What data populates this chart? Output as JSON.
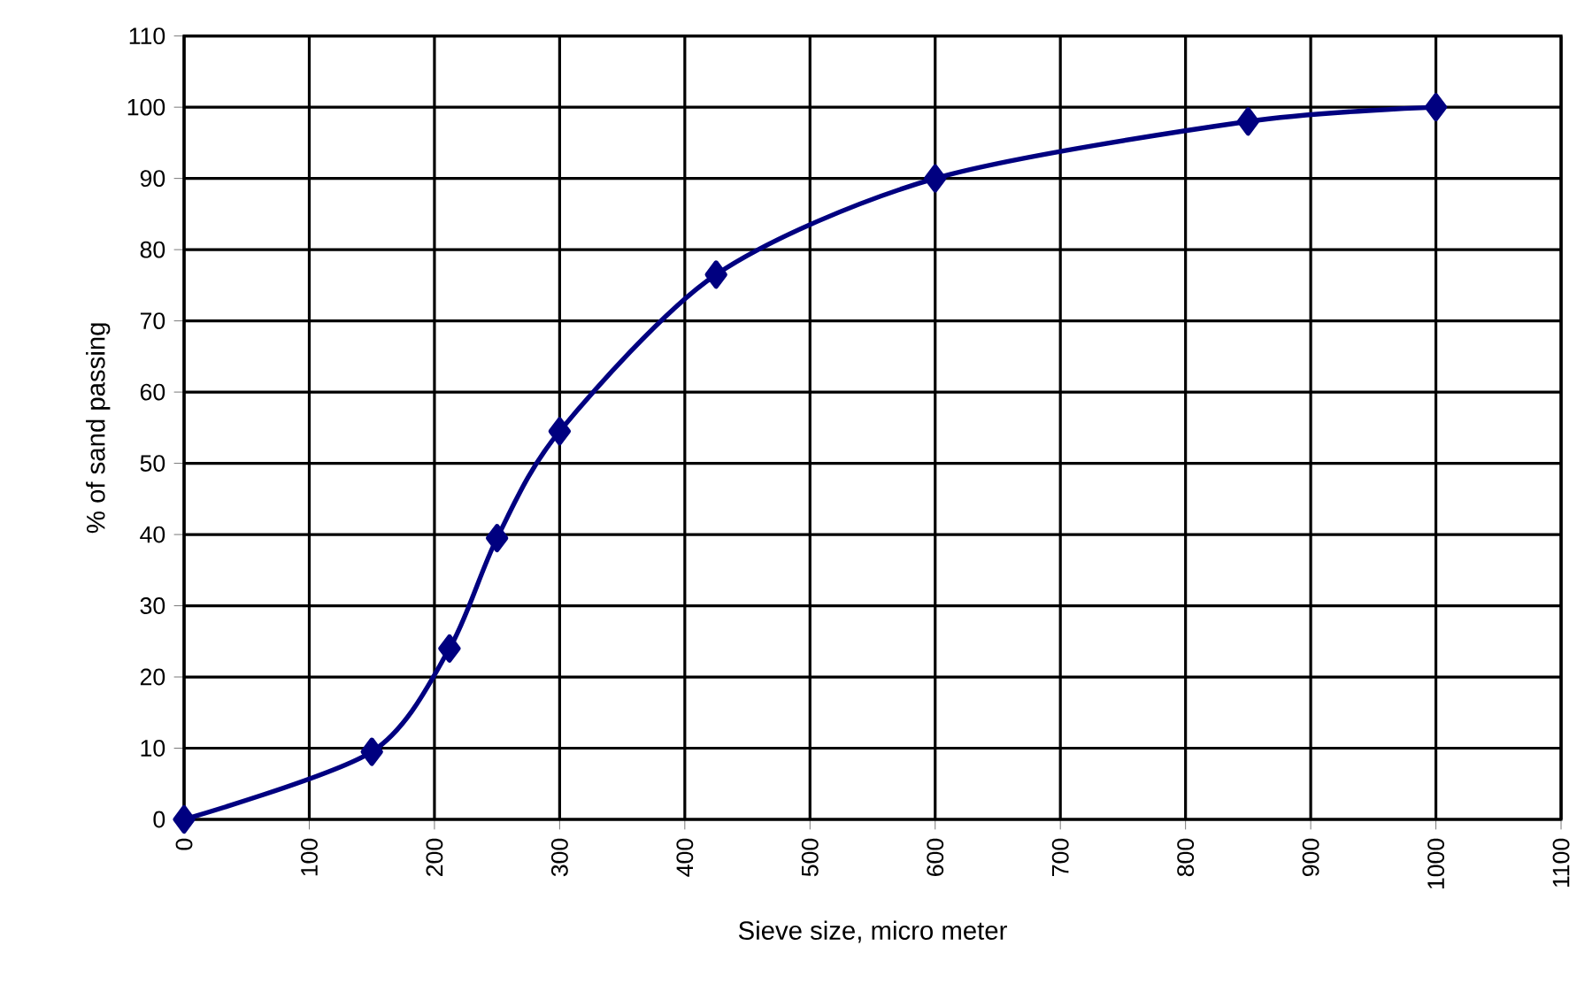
{
  "chart_data": {
    "type": "line",
    "xlabel": "Sieve size, micro meter",
    "ylabel": "% of sand passing",
    "x": [
      0,
      150,
      212,
      250,
      300,
      425,
      600,
      850,
      1000
    ],
    "series": [
      {
        "color": "#000080",
        "values": [
          0,
          9.5,
          24,
          39.5,
          54.5,
          76.5,
          90,
          98,
          100
        ]
      }
    ],
    "xlim": [
      0,
      1100
    ],
    "xticks": [
      0,
      100,
      200,
      300,
      400,
      500,
      600,
      700,
      800,
      900,
      1000,
      1100
    ],
    "ylim": [
      0,
      110
    ],
    "yticks": [
      0,
      10,
      20,
      30,
      40,
      50,
      60,
      70,
      80,
      90,
      100,
      110
    ],
    "grid": true,
    "marker": "diamond",
    "line_style": "solid"
  }
}
